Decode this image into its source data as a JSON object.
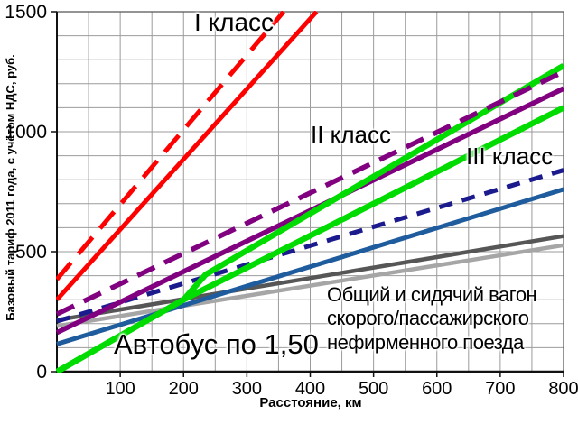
{
  "chart_data": {
    "type": "line",
    "title": "",
    "xlabel": "Расстояние, км",
    "ylabel": "Базовый тариф 2011 года, с учётом НДС, руб.",
    "xlim": [
      0,
      800
    ],
    "ylim": [
      0,
      1500
    ],
    "x_ticks": [
      100,
      200,
      300,
      400,
      500,
      600,
      700,
      800
    ],
    "x_tick_labels": [
      "100",
      "200",
      "300",
      "400",
      "500",
      "600",
      "700",
      "800"
    ],
    "y_ticks": [
      0,
      500,
      1000,
      1500
    ],
    "y_tick_labels": [
      "0",
      "500",
      "1000",
      "1500"
    ],
    "x_minor_step": 50,
    "y_minor_step": 100,
    "grid": true,
    "legend": "none (labels placed on chart)",
    "colors": {
      "background": "#ffffff",
      "grid": "#9b9b9b",
      "frame": "#5a5a5a",
      "axis": "#111111",
      "text": "#000000",
      "class1_red": "#ff0000",
      "class2_purple": "#800080",
      "class3_navy_dashed": "#1b1b8e",
      "class3_blue_solid": "#1f5c9d",
      "bus_green": "#00dc00",
      "common_dark_gray": "#565656",
      "common_light_gray": "#a6a6a6"
    },
    "series": [
      {
        "name": "common-seated-car-light-gray",
        "label_ref": "Общий и сидячий вагон скорого/пассажирского нефирменного поезда",
        "color": "#a6a6a6",
        "style": "solid",
        "width": 4.5,
        "points": [
          [
            0,
            190
          ],
          [
            800,
            527
          ]
        ]
      },
      {
        "name": "common-seated-car-dark-gray",
        "label_ref": "Общий и сидячий вагон скорого/пассажирского нефирменного поезда",
        "color": "#565656",
        "style": "solid",
        "width": 4.5,
        "points": [
          [
            0,
            215
          ],
          [
            800,
            565
          ]
        ]
      },
      {
        "name": "class-3-solid",
        "label_ref": "III класс",
        "color": "#1f5c9d",
        "style": "solid",
        "width": 5,
        "points": [
          [
            0,
            115
          ],
          [
            800,
            760
          ]
        ]
      },
      {
        "name": "class-3-dashed",
        "label_ref": "III класс",
        "color": "#1b1b8e",
        "style": "dashed",
        "dash": [
          15,
          11
        ],
        "width": 5,
        "points": [
          [
            0,
            210
          ],
          [
            800,
            840
          ]
        ]
      },
      {
        "name": "class-2-solid",
        "label_ref": "II класс",
        "color": "#800080",
        "style": "solid",
        "width": 5.5,
        "points": [
          [
            0,
            163
          ],
          [
            800,
            1180
          ]
        ]
      },
      {
        "name": "bus-1-50-lower",
        "label_ref": "Автобус по 1,50",
        "color": "#00dc00",
        "style": "solid",
        "width": 6.5,
        "points": [
          [
            0,
            0
          ],
          [
            200,
            300
          ],
          [
            800,
            1100
          ]
        ]
      },
      {
        "name": "bus-1-50-upper",
        "label_ref": "Автобус по 1,50",
        "color": "#00dc00",
        "style": "solid",
        "width": 6.5,
        "points": [
          [
            0,
            0
          ],
          [
            200,
            300
          ],
          [
            235,
            405
          ],
          [
            800,
            1275
          ]
        ]
      },
      {
        "name": "class-2-dashed",
        "label_ref": "II класс",
        "color": "#800080",
        "style": "dashed",
        "dash": [
          21,
          12
        ],
        "width": 5.5,
        "points": [
          [
            0,
            240
          ],
          [
            800,
            1250
          ]
        ]
      },
      {
        "name": "class-1-solid",
        "label_ref": "I класс",
        "color": "#ff0000",
        "style": "solid",
        "width": 5,
        "points": [
          [
            0,
            300
          ],
          [
            410,
            1500
          ]
        ]
      },
      {
        "name": "class-1-dashed",
        "label_ref": "I класс",
        "color": "#ff0000",
        "style": "dashed",
        "dash": [
          24,
          13
        ],
        "width": 5,
        "points": [
          [
            0,
            385
          ],
          [
            358,
            1500
          ]
        ]
      }
    ],
    "annotations": [
      {
        "text": "I класс"
      },
      {
        "text": "II класс"
      },
      {
        "text": "III класс"
      },
      {
        "text": "Автобус по 1,50"
      },
      {
        "lines": [
          "Общий и сидячий вагон",
          "скорого/пассажирского",
          "нефирменного поезда"
        ]
      }
    ]
  }
}
